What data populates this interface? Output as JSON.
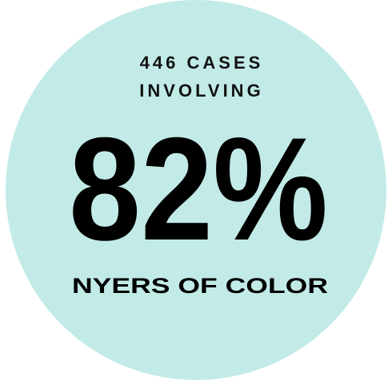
{
  "header": {
    "line1": "446 CASES",
    "line2": "INVOLVING"
  },
  "figure": "82%",
  "caption": "NYERS OF COLOR"
}
